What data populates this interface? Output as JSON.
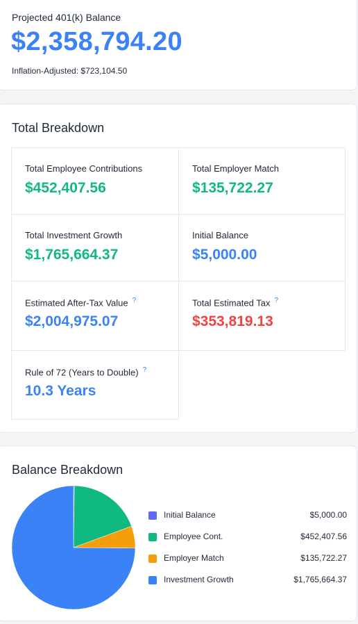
{
  "projected": {
    "label": "Projected 401(k) Balance",
    "value": "$2,358,794.20",
    "inflation_adjusted": "Inflation-Adjusted: $723,104.50"
  },
  "breakdown": {
    "title": "Total Breakdown",
    "help_glyph": "?",
    "items": [
      {
        "label": "Total Employee Contributions",
        "value": "$452,407.56",
        "color": "#10b981"
      },
      {
        "label": "Total Employer Match",
        "value": "$135,722.27",
        "color": "#10b981"
      },
      {
        "label": "Total Investment Growth",
        "value": "$1,765,664.37",
        "color": "#10b981"
      },
      {
        "label": "Initial Balance",
        "value": "$5,000.00",
        "color": "#3b82f6"
      },
      {
        "label": "Estimated After-Tax Value",
        "value": "$2,004,975.07",
        "color": "#3b82f6"
      },
      {
        "label": "Total Estimated Tax",
        "value": "$353,819.13",
        "color": "#ef4444"
      },
      {
        "label": "Rule of 72 (Years to Double)",
        "value": "10.3 Years",
        "color": "#3b82f6"
      }
    ]
  },
  "pie": {
    "title": "Balance Breakdown"
  },
  "chart_data": {
    "type": "pie",
    "title": "Balance Breakdown",
    "slices": [
      {
        "name": "Initial Balance",
        "value": 5000.0,
        "label": "$5,000.00",
        "color": "#6366f1"
      },
      {
        "name": "Employee Cont.",
        "value": 452407.56,
        "label": "$452,407.56",
        "color": "#10b981"
      },
      {
        "name": "Employer Match",
        "value": 135722.27,
        "label": "$135,722.27",
        "color": "#f59e0b"
      },
      {
        "name": "Investment Growth",
        "value": 1765664.37,
        "label": "$1,765,664.37",
        "color": "#3b82f6"
      }
    ],
    "legend": "right"
  }
}
